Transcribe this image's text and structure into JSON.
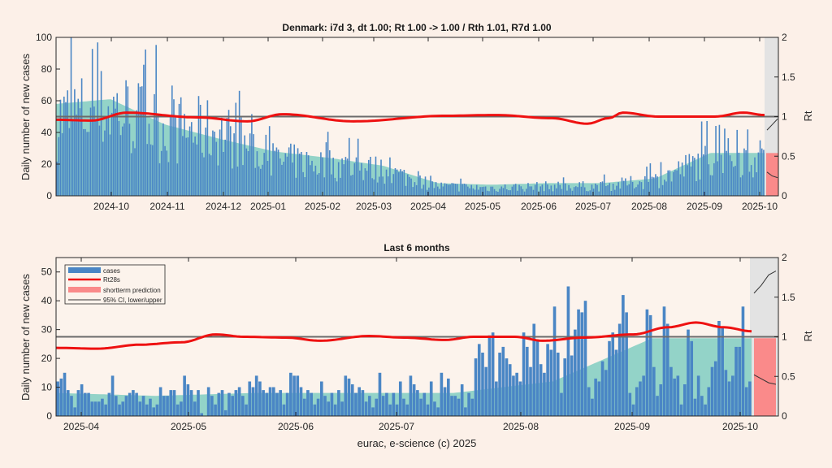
{
  "chart_data": [
    {
      "type": "bar",
      "title": "Denmark: i7d 3, dt 1.00; Rt 1.00 -> 1.00 / Rth 1.01, R7d 1.00",
      "ylabel": "Daily number of new cases",
      "y2label": "Rt",
      "ylim": [
        0,
        100
      ],
      "y2lim": [
        0,
        2
      ],
      "yticks": [
        "0",
        "20",
        "40",
        "60",
        "80",
        "100"
      ],
      "y2ticks": [
        "0",
        "0.5",
        "1",
        "1.5",
        "2"
      ],
      "xticks": [
        "2024-10",
        "2024-11",
        "2024-12",
        "2025-01",
        "2025-02",
        "2025-03",
        "2025-04",
        "2025-05",
        "2025-06",
        "2025-07",
        "2025-08",
        "2025-09",
        "2025-10"
      ],
      "x_range": [
        "2024-09-06",
        "2025-10-12"
      ],
      "grid": false,
      "series": [
        {
          "name": "cases",
          "kind": "bar",
          "color": "#4a86c5",
          "monthly_level": [
            48,
            55,
            42,
            40,
            22,
            20,
            16,
            6,
            5,
            6,
            6,
            10,
            24,
            24
          ]
        },
        {
          "name": "smoothed",
          "kind": "area",
          "color": "#93d3c8",
          "monthly_level": [
            58,
            61,
            45,
            36,
            28,
            24,
            19,
            8,
            7,
            8,
            8,
            11,
            27,
            27
          ]
        },
        {
          "name": "Rt28s",
          "kind": "line",
          "color": "#ee1111",
          "keypoints": [
            [
              0,
              0.96
            ],
            [
              0.05,
              0.95
            ],
            [
              0.1,
              1.05
            ],
            [
              0.2,
              0.99
            ],
            [
              0.27,
              0.94
            ],
            [
              0.32,
              1.03
            ],
            [
              0.42,
              0.94
            ],
            [
              0.55,
              1.01
            ],
            [
              0.62,
              1.02
            ],
            [
              0.7,
              0.98
            ],
            [
              0.75,
              0.91
            ],
            [
              0.78,
              0.98
            ],
            [
              0.8,
              1.05
            ],
            [
              0.85,
              1.0
            ],
            [
              0.88,
              1.0
            ],
            [
              0.93,
              1.0
            ],
            [
              0.97,
              1.05
            ],
            [
              1.0,
              1.02
            ]
          ]
        },
        {
          "name": "shortterm prediction",
          "kind": "bar",
          "color": "#fa8a8a",
          "value": 27
        },
        {
          "name": "95% CI upper",
          "kind": "line",
          "color": "#333333",
          "values": [
            0.83,
            0.9,
            0.97
          ]
        },
        {
          "name": "95% CI lower",
          "kind": "line",
          "color": "#333333",
          "values": [
            0.3,
            0.25,
            0.23
          ]
        }
      ],
      "reference_line": 1
    },
    {
      "type": "bar",
      "title": "Last 6 months",
      "ylabel": "Daily number of new cases",
      "y2label": "Rt",
      "ylim": [
        0,
        55
      ],
      "y2lim": [
        0,
        2
      ],
      "yticks": [
        "0",
        "10",
        "20",
        "30",
        "40",
        "50"
      ],
      "y2ticks": [
        "0",
        "0.5",
        "1",
        "1.5",
        "2"
      ],
      "xticks": [
        "2025-04",
        "2025-05",
        "2025-06",
        "2025-07",
        "2025-08",
        "2025-09",
        "2025-10"
      ],
      "xlabel": "eurac, e-science (c) 2025",
      "x_range": [
        "2025-03-24",
        "2025-10-12"
      ],
      "grid": false,
      "legend": {
        "position": "top-left",
        "entries": [
          "cases",
          "Rt28s",
          "shortterm prediction",
          "95% CI, lower/upper"
        ]
      },
      "series": [
        {
          "name": "cases",
          "kind": "bar",
          "color": "#4a86c5",
          "values": [
            12,
            13,
            15,
            9,
            7,
            3,
            9,
            11,
            8,
            8,
            5,
            5,
            5,
            6,
            4,
            8,
            14,
            7,
            4,
            5,
            7,
            8,
            9,
            8,
            5,
            7,
            4,
            6,
            3,
            4,
            10,
            7,
            7,
            9,
            9,
            4,
            5,
            14,
            11,
            9,
            5,
            9,
            1,
            0,
            10,
            7,
            4,
            8,
            9,
            2,
            8,
            7,
            9,
            10,
            7,
            4,
            12,
            10,
            14,
            12,
            9,
            8,
            10,
            10,
            8,
            9,
            4,
            8,
            15,
            14,
            14,
            10,
            6,
            9,
            8,
            4,
            6,
            12,
            7,
            5,
            8,
            4,
            9,
            5,
            14,
            13,
            11,
            8,
            10,
            9,
            5,
            7,
            3,
            6,
            15,
            7,
            8,
            4,
            8,
            4,
            12,
            6,
            4,
            14,
            11,
            9,
            6,
            8,
            4,
            12,
            5,
            3,
            15,
            10,
            13,
            7,
            7,
            6,
            11,
            3,
            8,
            6,
            20,
            25,
            22,
            17,
            28,
            29,
            12,
            22,
            24,
            20,
            18,
            14,
            15,
            12,
            29,
            24,
            17,
            32,
            26,
            18,
            15,
            25,
            23,
            38,
            22,
            8,
            20,
            45,
            21,
            30,
            37,
            36,
            40,
            10,
            6,
            13,
            12,
            19,
            16,
            26,
            29,
            23,
            32,
            42,
            36,
            8,
            4,
            10,
            12,
            14,
            37,
            35,
            17,
            7,
            11,
            38,
            32,
            17,
            13,
            14,
            4,
            11,
            30,
            26,
            6,
            14,
            7,
            4,
            10,
            17,
            19,
            33,
            31,
            16,
            12,
            14,
            24,
            24,
            38,
            10,
            12,
            15,
            10,
            35,
            37,
            11,
            28,
            34,
            33,
            6,
            25
          ]
        },
        {
          "name": "smoothed",
          "kind": "area",
          "color": "#93d3c8",
          "monthly_level": [
            8,
            7,
            8,
            8,
            8,
            12,
            27,
            27
          ]
        },
        {
          "name": "Rt28s",
          "kind": "line",
          "color": "#ee1111",
          "keypoints": [
            [
              0,
              0.86
            ],
            [
              0.06,
              0.85
            ],
            [
              0.12,
              0.9
            ],
            [
              0.18,
              0.93
            ],
            [
              0.23,
              1.03
            ],
            [
              0.27,
              1.0
            ],
            [
              0.33,
              0.99
            ],
            [
              0.38,
              0.95
            ],
            [
              0.45,
              1.01
            ],
            [
              0.5,
              0.99
            ],
            [
              0.56,
              0.96
            ],
            [
              0.6,
              1.0
            ],
            [
              0.66,
              1.0
            ],
            [
              0.7,
              0.95
            ],
            [
              0.76,
              0.99
            ],
            [
              0.83,
              1.03
            ],
            [
              0.88,
              1.12
            ],
            [
              0.92,
              1.18
            ],
            [
              0.96,
              1.12
            ],
            [
              1.0,
              1.07
            ]
          ]
        },
        {
          "name": "shortterm prediction",
          "kind": "bar",
          "color": "#fa8a8a",
          "value": 27
        },
        {
          "name": "95% CI upper",
          "kind": "line",
          "color": "#333333",
          "values": [
            1.55,
            1.65,
            1.78,
            1.83
          ]
        },
        {
          "name": "95% CI lower",
          "kind": "line",
          "color": "#333333",
          "values": [
            0.52,
            0.47,
            0.42,
            0.4
          ]
        }
      ],
      "reference_line": 1
    }
  ]
}
